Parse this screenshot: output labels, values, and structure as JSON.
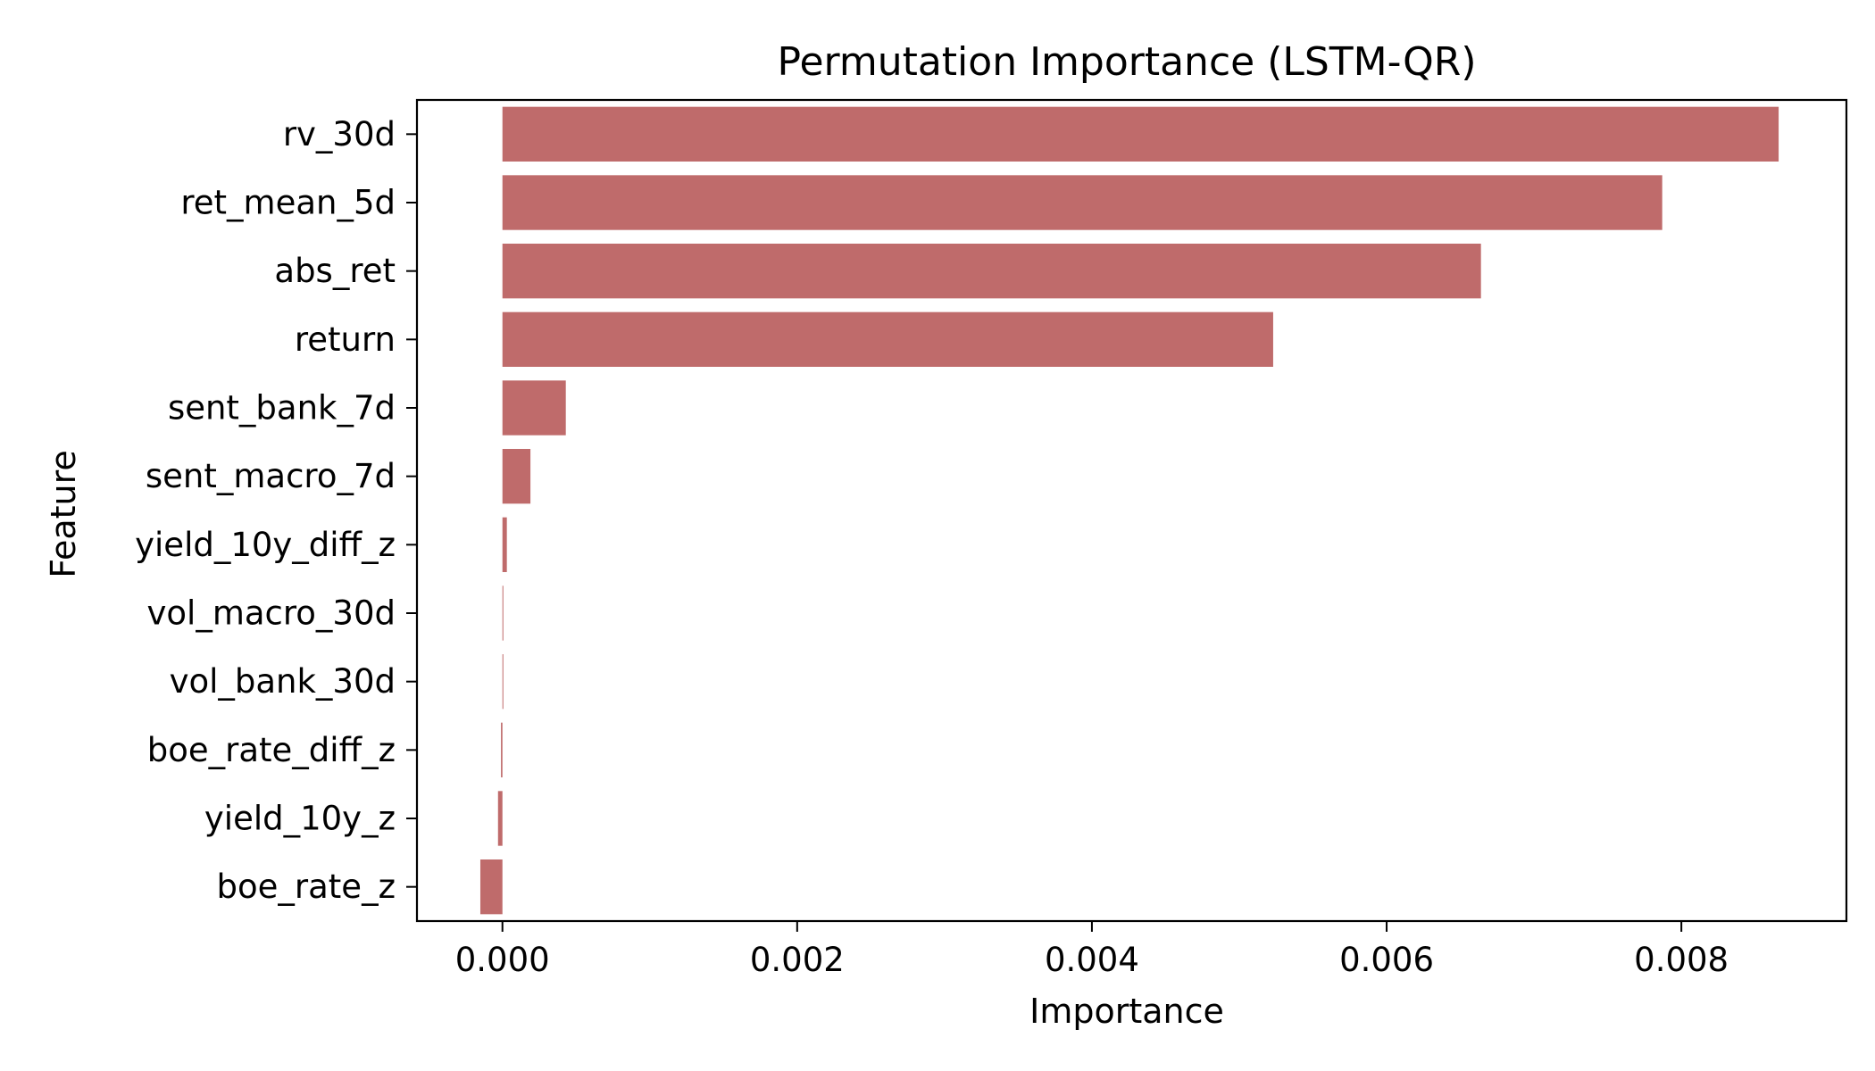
{
  "chart_data": {
    "type": "bar",
    "orientation": "horizontal",
    "title": "Permutation Importance (LSTM-QR)",
    "xlabel": "Importance",
    "ylabel": "Feature",
    "categories": [
      "rv_30d",
      "ret_mean_5d",
      "abs_ret",
      "return",
      "sent_bank_7d",
      "sent_macro_7d",
      "yield_10y_diff_z",
      "vol_macro_30d",
      "vol_bank_30d",
      "boe_rate_diff_z",
      "yield_10y_z",
      "boe_rate_z"
    ],
    "values": [
      0.00866,
      0.00787,
      0.00664,
      0.00523,
      0.00043,
      0.00019,
      3e-05,
      5e-06,
      5e-06,
      -1e-05,
      -3e-05,
      -0.00015
    ],
    "xlim": [
      -0.00058,
      0.00912
    ],
    "xticks": [
      0.0,
      0.002,
      0.004,
      0.006,
      0.008
    ],
    "xtick_labels": [
      "0.000",
      "0.002",
      "0.004",
      "0.006",
      "0.008"
    ],
    "grid": false,
    "legend": "none",
    "bar_color": "#bf6b6b"
  }
}
